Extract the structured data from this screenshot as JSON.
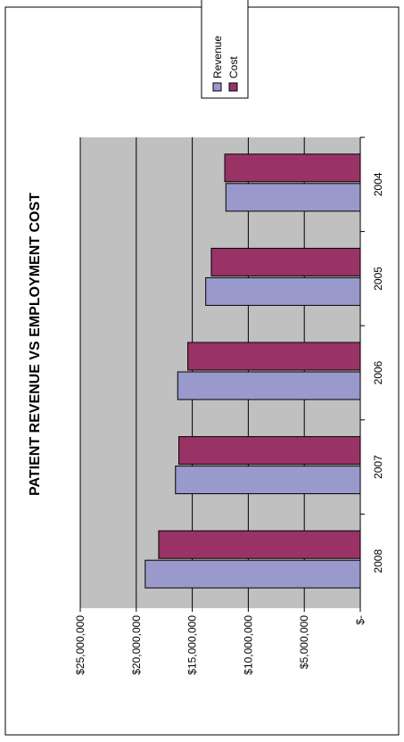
{
  "chart_data": {
    "type": "bar",
    "orientation": "horizontal",
    "title": "PATIENT REVENUE VS EMPLOYMENT COST",
    "categories": [
      "2008",
      "2007",
      "2006",
      "2005",
      "2004"
    ],
    "series": [
      {
        "name": "Revenue",
        "color": "#9999cc",
        "values": [
          19200000,
          16500000,
          16300000,
          13800000,
          12000000
        ]
      },
      {
        "name": "Cost",
        "color": "#993366",
        "values": [
          18000000,
          16200000,
          15400000,
          13300000,
          12100000
        ]
      }
    ],
    "value_axis": {
      "min": 0,
      "max": 25000000,
      "ticks": [
        {
          "value": 0,
          "label": "$-"
        },
        {
          "value": 5000000,
          "label": "$5,000,000"
        },
        {
          "value": 10000000,
          "label": "$10,000,000"
        },
        {
          "value": 15000000,
          "label": "$15,000,000"
        },
        {
          "value": 20000000,
          "label": "$20,000,000"
        },
        {
          "value": 25000000,
          "label": "$25,000,000"
        }
      ]
    },
    "grid": true,
    "plot_background": "#c0c0c0",
    "legend_position": "top-right"
  }
}
